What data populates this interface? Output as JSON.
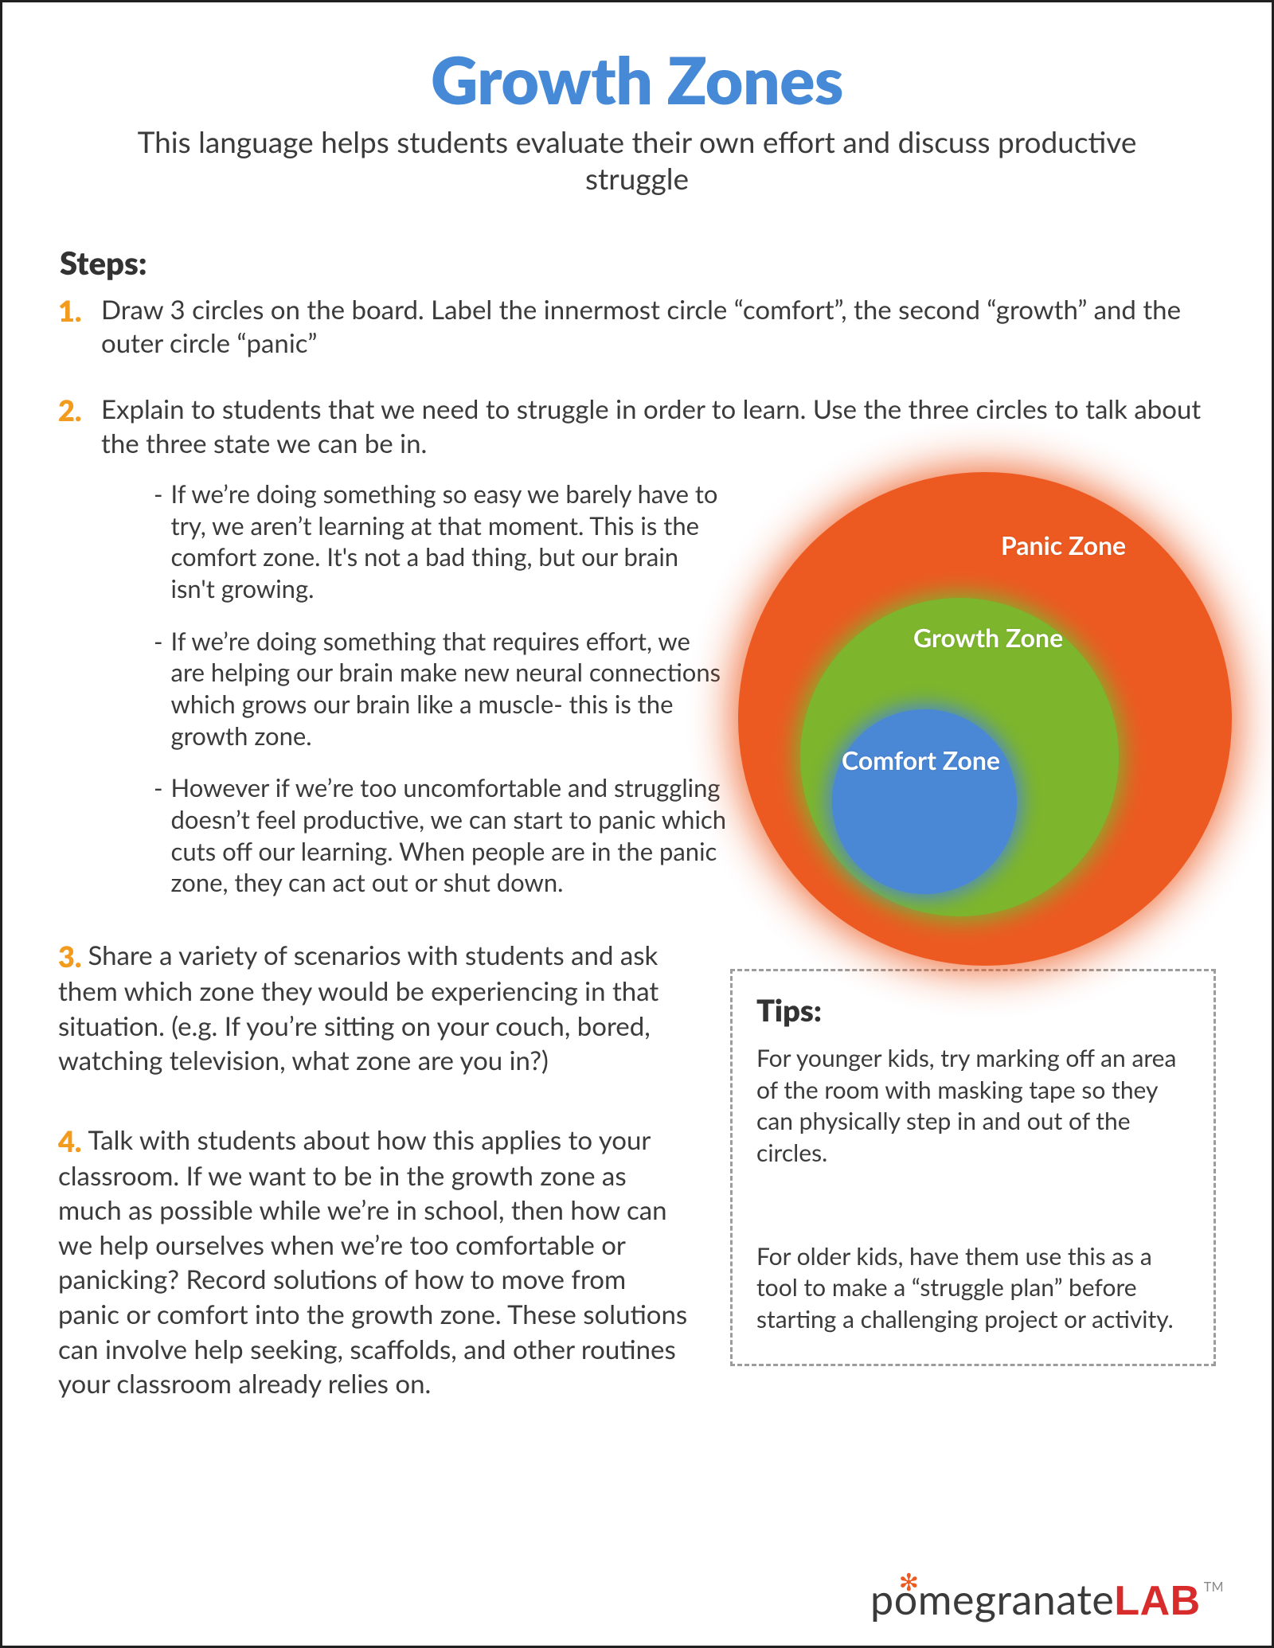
{
  "header": {
    "title": "Growth Zones",
    "subtitle": "This language helps students evaluate their own effort and discuss productive struggle"
  },
  "steps_heading": "Steps:",
  "step1": {
    "num": "1.",
    "text": "Draw 3 circles on the board. Label the innermost circle “comfort”, the second “growth” and the outer circle “panic”"
  },
  "step2": {
    "num": "2.",
    "text": "Explain to students that we need to struggle in order to learn. Use the three circles to talk about the three state we can be in.",
    "bullets": [
      "If we’re doing something so easy we barely have to try, we aren’t learning at that moment. This is the comfort zone. It's not a bad thing, but our brain isn't growing.",
      "If we’re doing something that requires effort, we are helping our brain make new neural connections which grows our brain like a muscle- this is the growth zone.",
      "However if we’re too uncomfortable and struggling doesn’t feel productive, we can start to panic which cuts off our learning. When people are in the panic zone, they can act out or shut down."
    ]
  },
  "step3": {
    "num": "3.",
    "text": "Share a variety of scenarios with students and ask them which zone they would be experiencing in that situation. (e.g. If you’re sitting on your couch, bored, watching television, what zone are you in?)"
  },
  "step4": {
    "num": "4.",
    "text": "Talk with students about how this applies to your classroom. If we want to be in the growth zone as much as possible while we’re in school, then how can we help ourselves when we’re too comfortable or panicking? Record solutions of how to move from panic or comfort into the growth zone. These solutions can involve help seeking, scaffolds, and other routines your classroom already relies on."
  },
  "diagram": {
    "panic_label": "Panic Zone",
    "growth_label": "Growth Zone",
    "comfort_label": "Comfort Zone",
    "panic_color": "#ec5a21",
    "growth_color": "#7db52c",
    "comfort_color": "#4a87d5"
  },
  "tips": {
    "heading": "Tips:",
    "p1": "For younger kids, try marking off an area of the room with masking tape so they can physically step in and out of the circles.",
    "p2": "For older kids, have them use this as a tool to make a “struggle plan” before starting a challenging project or activity."
  },
  "brand": {
    "part1": "p",
    "o": "o",
    "part2": "megranate",
    "lab": "LAB",
    "tm": "TM"
  }
}
